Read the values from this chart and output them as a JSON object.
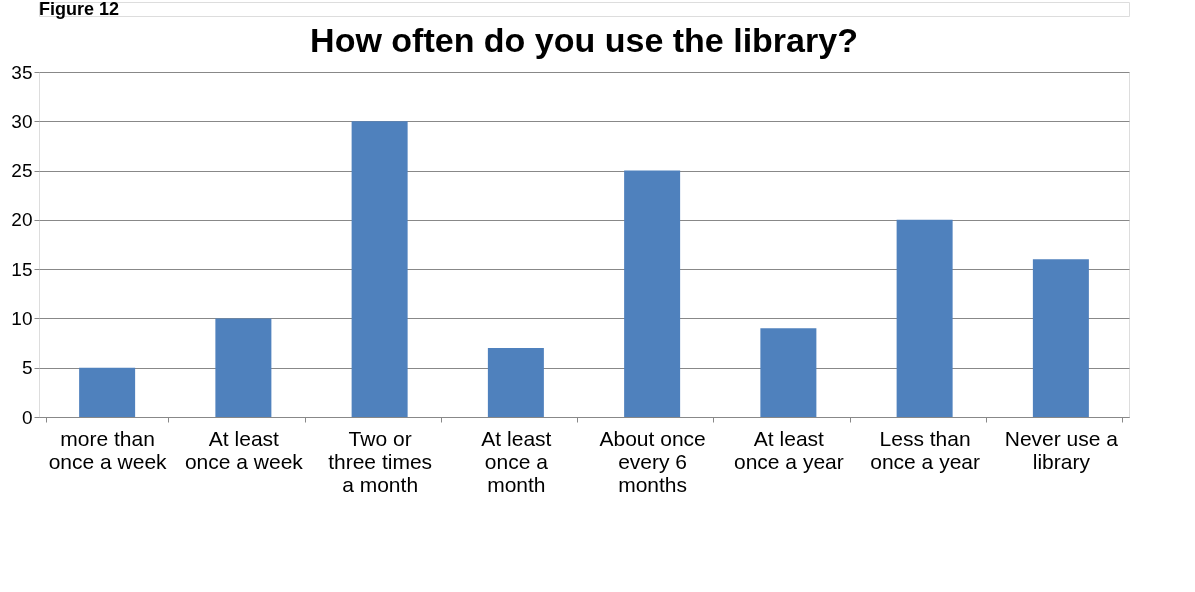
{
  "chart_data": {
    "type": "bar",
    "title": "How often do you use the library?",
    "annotations": [
      "Figure 12"
    ],
    "categories": [
      "more than once a week",
      "At least once a week",
      "Two or three times a month",
      "At least once a month",
      "About once every 6 months",
      "At least once a year",
      "Less than once a year",
      "Never use a library"
    ],
    "values": [
      5,
      10,
      30,
      7,
      25,
      9,
      20,
      16
    ],
    "color": "#4f81bd",
    "ylim": [
      0,
      35
    ],
    "yticks": [
      0,
      5,
      10,
      15,
      20,
      25,
      30,
      35
    ],
    "grid": "y"
  }
}
